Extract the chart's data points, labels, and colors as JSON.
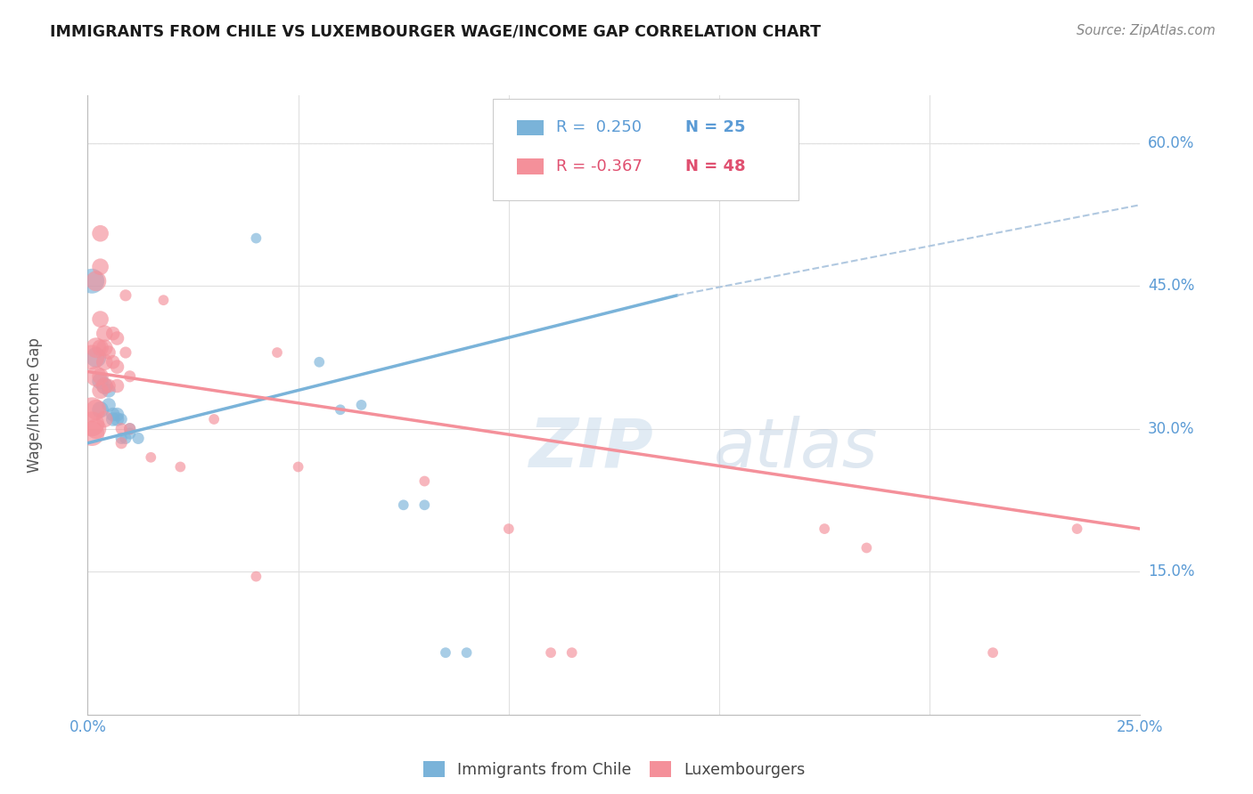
{
  "title": "IMMIGRANTS FROM CHILE VS LUXEMBOURGER WAGE/INCOME GAP CORRELATION CHART",
  "source": "Source: ZipAtlas.com",
  "ylabel": "Wage/Income Gap",
  "xlim": [
    0.0,
    0.25
  ],
  "ylim": [
    0.0,
    0.65
  ],
  "xtick_positions": [
    0.0,
    0.05,
    0.1,
    0.15,
    0.2,
    0.25
  ],
  "xtick_labels": [
    "0.0%",
    "",
    "",
    "",
    "",
    "25.0%"
  ],
  "ytick_vals": [
    0.15,
    0.3,
    0.45,
    0.6
  ],
  "ytick_labels": [
    "15.0%",
    "30.0%",
    "45.0%",
    "60.0%"
  ],
  "legend_blue_R": "0.250",
  "legend_blue_N": "25",
  "legend_pink_R": "-0.367",
  "legend_pink_N": "48",
  "blue_color": "#7ab3d9",
  "pink_color": "#f4909a",
  "blue_scatter": [
    [
      0.001,
      0.455
    ],
    [
      0.002,
      0.375
    ],
    [
      0.003,
      0.35
    ],
    [
      0.003,
      0.32
    ],
    [
      0.004,
      0.345
    ],
    [
      0.005,
      0.34
    ],
    [
      0.005,
      0.325
    ],
    [
      0.006,
      0.315
    ],
    [
      0.006,
      0.31
    ],
    [
      0.007,
      0.315
    ],
    [
      0.007,
      0.31
    ],
    [
      0.008,
      0.31
    ],
    [
      0.008,
      0.29
    ],
    [
      0.009,
      0.29
    ],
    [
      0.01,
      0.3
    ],
    [
      0.01,
      0.295
    ],
    [
      0.012,
      0.29
    ],
    [
      0.04,
      0.5
    ],
    [
      0.055,
      0.37
    ],
    [
      0.06,
      0.32
    ],
    [
      0.065,
      0.325
    ],
    [
      0.075,
      0.22
    ],
    [
      0.08,
      0.22
    ],
    [
      0.085,
      0.065
    ],
    [
      0.09,
      0.065
    ]
  ],
  "pink_scatter": [
    [
      0.001,
      0.375
    ],
    [
      0.001,
      0.32
    ],
    [
      0.001,
      0.305
    ],
    [
      0.001,
      0.295
    ],
    [
      0.002,
      0.455
    ],
    [
      0.002,
      0.385
    ],
    [
      0.002,
      0.355
    ],
    [
      0.002,
      0.32
    ],
    [
      0.002,
      0.3
    ],
    [
      0.003,
      0.505
    ],
    [
      0.003,
      0.47
    ],
    [
      0.003,
      0.415
    ],
    [
      0.003,
      0.385
    ],
    [
      0.003,
      0.355
    ],
    [
      0.003,
      0.34
    ],
    [
      0.004,
      0.4
    ],
    [
      0.004,
      0.385
    ],
    [
      0.004,
      0.37
    ],
    [
      0.004,
      0.345
    ],
    [
      0.004,
      0.31
    ],
    [
      0.005,
      0.38
    ],
    [
      0.005,
      0.345
    ],
    [
      0.006,
      0.4
    ],
    [
      0.006,
      0.37
    ],
    [
      0.007,
      0.395
    ],
    [
      0.007,
      0.365
    ],
    [
      0.007,
      0.345
    ],
    [
      0.008,
      0.3
    ],
    [
      0.008,
      0.285
    ],
    [
      0.009,
      0.44
    ],
    [
      0.009,
      0.38
    ],
    [
      0.01,
      0.355
    ],
    [
      0.01,
      0.3
    ],
    [
      0.015,
      0.27
    ],
    [
      0.018,
      0.435
    ],
    [
      0.022,
      0.26
    ],
    [
      0.03,
      0.31
    ],
    [
      0.04,
      0.145
    ],
    [
      0.045,
      0.38
    ],
    [
      0.05,
      0.26
    ],
    [
      0.08,
      0.245
    ],
    [
      0.1,
      0.195
    ],
    [
      0.11,
      0.065
    ],
    [
      0.115,
      0.065
    ],
    [
      0.175,
      0.195
    ],
    [
      0.185,
      0.175
    ],
    [
      0.215,
      0.065
    ],
    [
      0.235,
      0.195
    ]
  ],
  "blue_line_x": [
    0.0,
    0.14
  ],
  "blue_line_y": [
    0.285,
    0.44
  ],
  "dashed_line_x": [
    0.14,
    0.25
  ],
  "dashed_line_y": [
    0.44,
    0.535
  ],
  "pink_line_x": [
    0.0,
    0.25
  ],
  "pink_line_y": [
    0.36,
    0.195
  ],
  "watermark_zip": "ZIP",
  "watermark_atlas": "atlas",
  "background_color": "#ffffff",
  "grid_color": "#e0e0e0",
  "tick_color": "#5b9bd5",
  "title_color": "#1a1a1a",
  "ylabel_color": "#555555",
  "source_color": "#888888",
  "legend_text_blue": "#5b9bd5",
  "legend_text_pink": "#e05070"
}
